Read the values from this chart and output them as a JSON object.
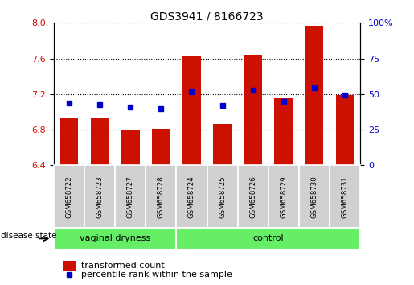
{
  "title": "GDS3941 / 8166723",
  "samples": [
    "GSM658722",
    "GSM658723",
    "GSM658727",
    "GSM658728",
    "GSM658724",
    "GSM658725",
    "GSM658726",
    "GSM658729",
    "GSM658730",
    "GSM658731"
  ],
  "red_values": [
    6.93,
    6.93,
    6.79,
    6.81,
    7.63,
    6.86,
    7.64,
    7.15,
    7.97,
    7.19
  ],
  "blue_values": [
    7.1,
    7.08,
    7.05,
    7.04,
    7.23,
    7.07,
    7.24,
    7.12,
    7.27,
    7.19
  ],
  "ylim_left": [
    6.4,
    8.0
  ],
  "ylim_right": [
    0,
    100
  ],
  "yticks_left": [
    6.4,
    6.8,
    7.2,
    7.6,
    8.0
  ],
  "yticks_right": [
    0,
    25,
    50,
    75,
    100
  ],
  "ytick_labels_right": [
    "0",
    "25",
    "50",
    "75",
    "100%"
  ],
  "bar_color": "#cc1100",
  "blue_color": "#0000cc",
  "group1_label": "vaginal dryness",
  "group1_count": 4,
  "group2_label": "control",
  "group2_count": 6,
  "group_color": "#66ee66",
  "xlabel_color": "#cc1100",
  "legend_red": "transformed count",
  "legend_blue": "percentile rank within the sample",
  "disease_state_label": "disease state",
  "bar_baseline": 6.4
}
